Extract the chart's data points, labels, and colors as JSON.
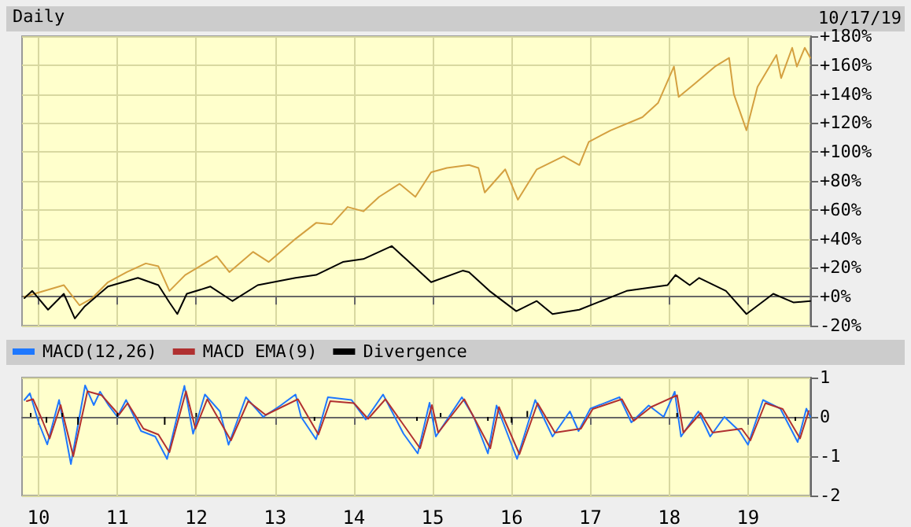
{
  "chart_data": [
    {
      "type": "line",
      "title": "Daily",
      "annotations": [
        "10/17/19"
      ],
      "xlim": [
        2009.79,
        2019.79
      ],
      "xticks": [
        2010,
        2011,
        2012,
        2013,
        2014,
        2015,
        2016,
        2017,
        2018,
        2019
      ],
      "ylim": [
        -20,
        180
      ],
      "yticks": [
        {
          "value": -20,
          "label": "-20%"
        },
        {
          "value": 0,
          "label": "+0%"
        },
        {
          "value": 20,
          "label": "+20%"
        },
        {
          "value": 40,
          "label": "+40%"
        },
        {
          "value": 60,
          "label": "+60%"
        },
        {
          "value": 80,
          "label": "+80%"
        },
        {
          "value": 100,
          "label": "+100%"
        },
        {
          "value": 120,
          "label": "+120%"
        },
        {
          "value": 140,
          "label": "+140%"
        },
        {
          "value": 160,
          "label": "+160%"
        },
        {
          "value": 180,
          "label": "+180%"
        }
      ],
      "tick_labels": "y",
      "grid": true,
      "marker": "none",
      "line_style": "solid",
      "series": [
        {
          "color": "#d4a040",
          "x": [
            2009.82,
            2010.32,
            2010.52,
            2010.68,
            2010.88,
            2011.12,
            2011.36,
            2011.52,
            2011.66,
            2011.86,
            2012.26,
            2012.42,
            2012.72,
            2012.92,
            2013.26,
            2013.52,
            2013.72,
            2013.92,
            2014.12,
            2014.32,
            2014.58,
            2014.78,
            2014.98,
            2015.18,
            2015.46,
            2015.58,
            2015.66,
            2015.92,
            2016.08,
            2016.32,
            2016.66,
            2016.86,
            2016.98,
            2017.26,
            2017.66,
            2017.86,
            2018.06,
            2018.12,
            2018.32,
            2018.58,
            2018.76,
            2018.82,
            2018.98,
            2019.12,
            2019.36,
            2019.42,
            2019.56,
            2019.62,
            2019.72,
            2019.79
          ],
          "values": [
            0,
            8,
            -6,
            -1,
            10,
            17,
            23,
            21,
            4,
            15,
            28,
            17,
            31,
            24,
            40,
            51,
            50,
            62,
            59,
            69,
            78,
            69,
            86,
            89,
            91,
            89,
            72,
            88,
            67,
            88,
            97,
            91,
            107,
            115,
            124,
            134,
            159,
            138,
            147,
            159,
            165,
            140,
            115,
            145,
            167,
            151,
            172,
            159,
            172,
            165
          ]
        },
        {
          "color": "#000000",
          "x": [
            2009.82,
            2009.92,
            2010.12,
            2010.32,
            2010.46,
            2010.58,
            2010.88,
            2011.26,
            2011.52,
            2011.66,
            2011.76,
            2011.88,
            2012.18,
            2012.46,
            2012.78,
            2013.26,
            2013.52,
            2013.86,
            2014.12,
            2014.48,
            2014.66,
            2014.98,
            2015.38,
            2015.46,
            2015.72,
            2016.06,
            2016.32,
            2016.52,
            2016.86,
            2017.46,
            2017.98,
            2018.08,
            2018.26,
            2018.38,
            2018.72,
            2018.98,
            2019.32,
            2019.58,
            2019.79
          ],
          "values": [
            -1,
            4,
            -9,
            2,
            -15,
            -7,
            7,
            13,
            8,
            -4,
            -12,
            2,
            7,
            -3,
            8,
            13,
            15,
            24,
            26,
            35,
            26,
            10,
            18,
            17,
            4,
            -10,
            -3,
            -12,
            -9,
            4,
            8,
            15,
            8,
            13,
            4,
            -12,
            2,
            -4,
            -3
          ]
        }
      ]
    },
    {
      "type": "line",
      "xlim": [
        2009.79,
        2019.79
      ],
      "xticks": [
        {
          "value": 2010,
          "label": "10"
        },
        {
          "value": 2011,
          "label": "11"
        },
        {
          "value": 2012,
          "label": "12"
        },
        {
          "value": 2013,
          "label": "13"
        },
        {
          "value": 2014,
          "label": "14"
        },
        {
          "value": 2015,
          "label": "15"
        },
        {
          "value": 2016,
          "label": "16"
        },
        {
          "value": 2017,
          "label": "17"
        },
        {
          "value": 2018,
          "label": "18"
        },
        {
          "value": 2019,
          "label": "19"
        }
      ],
      "ylim": [
        -2,
        1
      ],
      "yticks": [
        -2,
        -1,
        0,
        1
      ],
      "grid": true,
      "legend": "top left",
      "marker": "none",
      "line_style": "solid",
      "series": [
        {
          "name": "MACD(12,26)",
          "color": "#1e78ff",
          "x": [
            2009.82,
            2009.89,
            2010.0,
            2010.11,
            2010.26,
            2010.41,
            2010.59,
            2010.7,
            2010.78,
            2010.89,
            2011.0,
            2011.11,
            2011.3,
            2011.48,
            2011.63,
            2011.85,
            2011.96,
            2012.11,
            2012.3,
            2012.41,
            2012.63,
            2012.85,
            2013.07,
            2013.26,
            2013.33,
            2013.52,
            2013.67,
            2013.97,
            2014.15,
            2014.37,
            2014.63,
            2014.81,
            2014.96,
            2015.04,
            2015.37,
            2015.52,
            2015.7,
            2015.81,
            2016.07,
            2016.3,
            2016.52,
            2016.74,
            2016.85,
            2017.0,
            2017.37,
            2017.52,
            2017.74,
            2017.93,
            2018.07,
            2018.15,
            2018.37,
            2018.52,
            2018.7,
            2018.89,
            2019.0,
            2019.19,
            2019.41,
            2019.63,
            2019.74,
            2019.79
          ],
          "values": [
            0.43,
            0.6,
            -0.14,
            -0.7,
            0.43,
            -1.2,
            0.8,
            0.3,
            0.64,
            0.29,
            0,
            0.43,
            -0.36,
            -0.5,
            -1.07,
            0.79,
            -0.43,
            0.57,
            0.14,
            -0.71,
            0.5,
            0,
            0.29,
            0.57,
            0,
            -0.57,
            0.5,
            0.43,
            -0.07,
            0.57,
            -0.43,
            -0.93,
            0.36,
            -0.5,
            0.5,
            0,
            -0.93,
            0.29,
            -1.07,
            0.43,
            -0.5,
            0.14,
            -0.36,
            0.21,
            0.5,
            -0.14,
            0.29,
            0,
            0.64,
            -0.5,
            0.14,
            -0.5,
            0,
            -0.36,
            -0.71,
            0.43,
            0.21,
            -0.64,
            0.21,
            0
          ]
        },
        {
          "name": "MACD EMA(9)",
          "color": "#b03030",
          "x": [
            2009.85,
            2009.93,
            2010.05,
            2010.14,
            2010.28,
            2010.44,
            2010.62,
            2010.8,
            2011.02,
            2011.13,
            2011.33,
            2011.52,
            2011.66,
            2011.87,
            2011.99,
            2012.14,
            2012.44,
            2012.66,
            2012.88,
            2013.29,
            2013.55,
            2013.7,
            2014.0,
            2014.18,
            2014.4,
            2014.84,
            2014.99,
            2015.07,
            2015.4,
            2015.73,
            2015.84,
            2016.1,
            2016.33,
            2016.55,
            2016.88,
            2017.03,
            2017.4,
            2017.55,
            2017.77,
            2018.1,
            2018.18,
            2018.4,
            2018.55,
            2018.92,
            2019.03,
            2019.22,
            2019.44,
            2019.66,
            2019.77
          ],
          "values": [
            0.4,
            0.45,
            -0.1,
            -0.55,
            0.3,
            -1.0,
            0.65,
            0.55,
            0.05,
            0.35,
            -0.3,
            -0.45,
            -0.9,
            0.65,
            -0.3,
            0.45,
            -0.6,
            0.4,
            0.05,
            0.45,
            -0.45,
            0.4,
            0.35,
            -0.05,
            0.45,
            -0.8,
            0.3,
            -0.4,
            0.45,
            -0.8,
            0.25,
            -0.95,
            0.35,
            -0.4,
            -0.3,
            0.2,
            0.45,
            -0.1,
            0.25,
            0.55,
            -0.4,
            0.1,
            -0.4,
            -0.3,
            -0.6,
            0.35,
            0.2,
            -0.55,
            0.15
          ]
        },
        {
          "name": "Divergence",
          "type": "bar",
          "color": "#000000",
          "x": [
            2009.9,
            2010.1,
            2010.3,
            2010.5,
            2011.0,
            2011.6,
            2012.0,
            2013.5,
            2014.8,
            2015.1,
            2015.7,
            2016.0,
            2016.2,
            2018.1,
            2019.6
          ],
          "values": [
            0.1,
            -0.15,
            0.1,
            -0.2,
            0.1,
            -0.2,
            0.1,
            -0.1,
            -0.1,
            0.1,
            -0.1,
            -0.15,
            0.15,
            0.1,
            -0.1
          ]
        }
      ]
    }
  ]
}
